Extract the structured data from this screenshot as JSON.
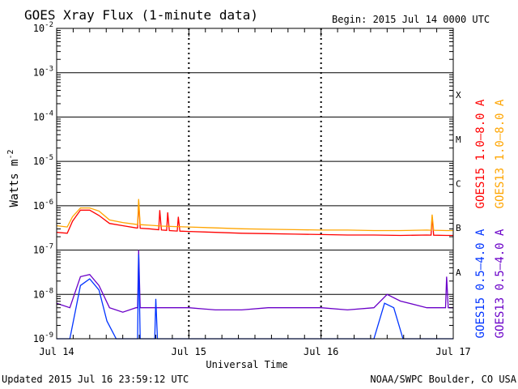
{
  "chart_data": {
    "type": "line",
    "title": "GOES Xray Flux (1-minute data)",
    "begin_label": "Begin:  2015 Jul 14 0000 UTC",
    "xlabel": "Universal Time",
    "ylabel": "Watts m",
    "ylabel_sup": "-2",
    "updated": "Updated 2015 Jul 16 23:59:12 UTC",
    "credit": "NOAA/SWPC Boulder, CO USA",
    "x_range_days": [
      0,
      3
    ],
    "x_ticks": [
      {
        "day": 0,
        "label": "Jul 14"
      },
      {
        "day": 1,
        "label": "Jul 15"
      },
      {
        "day": 2,
        "label": "Jul 16"
      },
      {
        "day": 3,
        "label": "Jul 17"
      }
    ],
    "y_scale": "log",
    "y_range_exp": [
      -9,
      -2
    ],
    "y_ticks": [
      {
        "exp": -2,
        "base": "10",
        "sup": "-2"
      },
      {
        "exp": -3,
        "base": "10",
        "sup": "-3"
      },
      {
        "exp": -4,
        "base": "10",
        "sup": "-4"
      },
      {
        "exp": -5,
        "base": "10",
        "sup": "-5"
      },
      {
        "exp": -6,
        "base": "10",
        "sup": "-6"
      },
      {
        "exp": -7,
        "base": "10",
        "sup": "-7"
      },
      {
        "exp": -8,
        "base": "10",
        "sup": "-8"
      },
      {
        "exp": -9,
        "base": "10",
        "sup": "-9"
      }
    ],
    "flare_classes": [
      {
        "label": "X",
        "exp": -3.5
      },
      {
        "label": "M",
        "exp": -4.5
      },
      {
        "label": "C",
        "exp": -5.5
      },
      {
        "label": "B",
        "exp": -6.5
      },
      {
        "label": "A",
        "exp": -7.5
      }
    ],
    "legend": [
      {
        "label": "GOES15 1.0–8.0 A",
        "color": "#ff0000"
      },
      {
        "label": "GOES13 1.0–8.0 A",
        "color": "#ffa500"
      },
      {
        "label": "GOES15 0.5–4.0 A",
        "color": "#0033ff"
      },
      {
        "label": "GOES13 0.5–4.0 A",
        "color": "#6a00c8"
      }
    ],
    "series": [
      {
        "name": "GOES15 1.0-8.0 A",
        "color": "#ff0000",
        "days": [
          0,
          0.08,
          0.12,
          0.18,
          0.25,
          0.32,
          0.4,
          0.5,
          0.6,
          0.7,
          0.8,
          0.9,
          1.0,
          1.2,
          1.4,
          1.6,
          1.8,
          2.0,
          2.2,
          2.4,
          2.6,
          2.8,
          2.95,
          3.0
        ],
        "exp": [
          -6.6,
          -6.62,
          -6.35,
          -6.1,
          -6.1,
          -6.22,
          -6.4,
          -6.45,
          -6.5,
          -6.52,
          -6.55,
          -6.57,
          -6.58,
          -6.6,
          -6.62,
          -6.63,
          -6.64,
          -6.65,
          -6.66,
          -6.66,
          -6.67,
          -6.66,
          -6.67,
          -6.67
        ],
        "peaks": [
          {
            "day": 0.62,
            "exp": -5.9
          },
          {
            "day": 0.78,
            "exp": -6.1
          },
          {
            "day": 0.84,
            "exp": -6.15
          },
          {
            "day": 0.92,
            "exp": -6.25
          },
          {
            "day": 2.84,
            "exp": -6.25
          }
        ]
      },
      {
        "name": "GOES13 1.0-8.0 A",
        "color": "#ffa500",
        "days": [
          0,
          0.08,
          0.12,
          0.18,
          0.25,
          0.32,
          0.4,
          0.5,
          0.6,
          0.7,
          0.8,
          0.9,
          1.0,
          1.2,
          1.4,
          1.6,
          1.8,
          2.0,
          2.2,
          2.4,
          2.6,
          2.8,
          2.95,
          3.0
        ],
        "exp": [
          -6.45,
          -6.48,
          -6.25,
          -6.05,
          -6.05,
          -6.12,
          -6.32,
          -6.38,
          -6.42,
          -6.44,
          -6.46,
          -6.47,
          -6.48,
          -6.5,
          -6.52,
          -6.53,
          -6.54,
          -6.55,
          -6.55,
          -6.56,
          -6.56,
          -6.55,
          -6.56,
          -6.56
        ],
        "peaks": [
          {
            "day": 0.62,
            "exp": -5.85
          },
          {
            "day": 2.84,
            "exp": -6.2
          }
        ]
      },
      {
        "name": "GOES13 0.5-4.0 A",
        "color": "#6a00c8",
        "days": [
          0,
          0.1,
          0.18,
          0.25,
          0.32,
          0.4,
          0.5,
          0.6,
          0.8,
          1.0,
          1.2,
          1.4,
          1.6,
          1.8,
          2.0,
          2.2,
          2.4,
          2.5,
          2.6,
          2.8,
          2.9,
          3.0
        ],
        "exp": [
          -8.2,
          -8.3,
          -7.6,
          -7.55,
          -7.8,
          -8.3,
          -8.4,
          -8.3,
          -8.3,
          -8.3,
          -8.35,
          -8.35,
          -8.3,
          -8.3,
          -8.3,
          -8.35,
          -8.3,
          -8.0,
          -8.15,
          -8.3,
          -8.3,
          -8.3
        ],
        "peaks": [
          {
            "day": 0.62,
            "exp": -7.0
          },
          {
            "day": 2.95,
            "exp": -7.6
          }
        ]
      },
      {
        "name": "GOES15 0.5-4.0 A",
        "color": "#0033ff",
        "days": [
          0,
          0.1,
          0.18,
          0.25,
          0.32,
          0.38,
          0.45,
          0.6,
          0.8,
          1.0,
          1.2,
          1.4,
          2.0,
          2.4,
          2.48,
          2.55,
          2.62,
          3.0
        ],
        "exp": [
          -9,
          -9,
          -7.8,
          -7.65,
          -7.9,
          -8.6,
          -9,
          -9,
          -9,
          -9,
          -9,
          -9,
          -9,
          -9,
          -8.2,
          -8.3,
          -9,
          -9
        ],
        "peaks": [
          {
            "day": 0.62,
            "exp": -7.1
          },
          {
            "day": 0.75,
            "exp": -8.1
          }
        ]
      }
    ]
  }
}
